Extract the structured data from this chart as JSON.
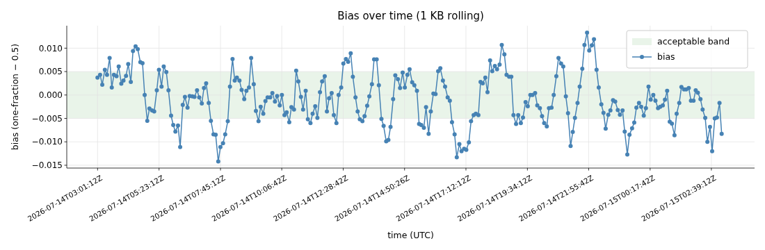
{
  "chart_data": {
    "type": "line",
    "title": "Bias over time (1 KB rolling)",
    "xlabel": "time (UTC)",
    "ylabel": "bias (one-fraction − 0.5)",
    "x": [
      "2026-07-14T03:01",
      "2026-07-14T03:07",
      "2026-07-14T03:12",
      "2026-07-14T03:18",
      "2026-07-14T03:23",
      "2026-07-14T03:29",
      "2026-07-14T03:34",
      "2026-07-14T03:39",
      "2026-07-14T03:45",
      "2026-07-14T03:50",
      "2026-07-14T03:56",
      "2026-07-14T04:01",
      "2026-07-14T04:07",
      "2026-07-14T04:12",
      "2026-07-14T04:18",
      "2026-07-14T04:23",
      "2026-07-14T04:29",
      "2026-07-14T04:34",
      "2026-07-14T04:40",
      "2026-07-14T04:45",
      "2026-07-14T04:50",
      "2026-07-14T04:56",
      "2026-07-14T05:01",
      "2026-07-14T05:07",
      "2026-07-14T05:12",
      "2026-07-14T05:18",
      "2026-07-14T05:23",
      "2026-07-14T05:29",
      "2026-07-14T05:34",
      "2026-07-14T05:40",
      "2026-07-14T05:45",
      "2026-07-14T05:51",
      "2026-07-14T05:56",
      "2026-07-14T06:01",
      "2026-07-14T06:07",
      "2026-07-14T06:12",
      "2026-07-14T06:18",
      "2026-07-14T06:23",
      "2026-07-14T06:29",
      "2026-07-14T06:34",
      "2026-07-14T06:40",
      "2026-07-14T06:45",
      "2026-07-14T06:51",
      "2026-07-14T06:56",
      "2026-07-14T07:02",
      "2026-07-14T07:07",
      "2026-07-14T07:12",
      "2026-07-14T07:18",
      "2026-07-14T07:23",
      "2026-07-14T07:29",
      "2026-07-14T07:34",
      "2026-07-14T07:40",
      "2026-07-14T07:45",
      "2026-07-14T07:51",
      "2026-07-14T07:56",
      "2026-07-14T08:02",
      "2026-07-14T08:07",
      "2026-07-14T08:13",
      "2026-07-14T08:18",
      "2026-07-14T08:23",
      "2026-07-14T08:29",
      "2026-07-14T08:34",
      "2026-07-14T08:40",
      "2026-07-14T08:45",
      "2026-07-14T08:51",
      "2026-07-14T08:56",
      "2026-07-14T09:02",
      "2026-07-14T09:07",
      "2026-07-14T09:13",
      "2026-07-14T09:18",
      "2026-07-14T09:24",
      "2026-07-14T09:29",
      "2026-07-14T09:34",
      "2026-07-14T09:40",
      "2026-07-14T09:45",
      "2026-07-14T09:51",
      "2026-07-14T09:56",
      "2026-07-14T10:02",
      "2026-07-14T10:07",
      "2026-07-14T10:13",
      "2026-07-14T10:18",
      "2026-07-14T10:24",
      "2026-07-14T10:29",
      "2026-07-14T10:35",
      "2026-07-14T10:40",
      "2026-07-14T10:45",
      "2026-07-14T10:51",
      "2026-07-14T10:56",
      "2026-07-14T11:02",
      "2026-07-14T11:07",
      "2026-07-14T11:13",
      "2026-07-14T11:18",
      "2026-07-14T11:24",
      "2026-07-14T11:29",
      "2026-07-14T11:35",
      "2026-07-14T11:40",
      "2026-07-14T11:46",
      "2026-07-14T11:51",
      "2026-07-14T11:56",
      "2026-07-14T12:02",
      "2026-07-14T12:07",
      "2026-07-14T12:13",
      "2026-07-14T12:18",
      "2026-07-14T12:24",
      "2026-07-14T12:29",
      "2026-07-14T12:35",
      "2026-07-14T12:40",
      "2026-07-14T12:46",
      "2026-07-14T12:51",
      "2026-07-14T12:57",
      "2026-07-14T13:02",
      "2026-07-14T13:07",
      "2026-07-14T13:13",
      "2026-07-14T13:18",
      "2026-07-14T13:24",
      "2026-07-14T13:29",
      "2026-07-14T13:35",
      "2026-07-14T13:40",
      "2026-07-14T13:46",
      "2026-07-14T13:51",
      "2026-07-14T13:57",
      "2026-07-14T14:02",
      "2026-07-14T14:08",
      "2026-07-14T14:13",
      "2026-07-14T14:18",
      "2026-07-14T14:24",
      "2026-07-14T14:29",
      "2026-07-14T14:35",
      "2026-07-14T14:40",
      "2026-07-14T14:46",
      "2026-07-14T14:51",
      "2026-07-14T14:57",
      "2026-07-14T15:02",
      "2026-07-14T15:08",
      "2026-07-14T15:13",
      "2026-07-14T15:19",
      "2026-07-14T15:24",
      "2026-07-14T15:29",
      "2026-07-14T15:35",
      "2026-07-14T15:40",
      "2026-07-14T15:46",
      "2026-07-14T15:51",
      "2026-07-14T15:57",
      "2026-07-14T16:02",
      "2026-07-14T16:08",
      "2026-07-14T16:13",
      "2026-07-14T16:19",
      "2026-07-14T16:24",
      "2026-07-14T16:30",
      "2026-07-14T16:35",
      "2026-07-14T16:40",
      "2026-07-14T16:46",
      "2026-07-14T16:51",
      "2026-07-14T16:57",
      "2026-07-14T17:02",
      "2026-07-14T17:08",
      "2026-07-14T17:13",
      "2026-07-14T17:19",
      "2026-07-14T17:24",
      "2026-07-14T17:30",
      "2026-07-14T17:35",
      "2026-07-14T17:41",
      "2026-07-14T17:46",
      "2026-07-14T17:51",
      "2026-07-14T17:57",
      "2026-07-14T18:02",
      "2026-07-14T18:08",
      "2026-07-14T18:13",
      "2026-07-14T18:19",
      "2026-07-14T18:24",
      "2026-07-14T18:30",
      "2026-07-14T18:35",
      "2026-07-14T18:41",
      "2026-07-14T18:46",
      "2026-07-14T18:52",
      "2026-07-14T18:57",
      "2026-07-14T19:02",
      "2026-07-14T19:08",
      "2026-07-14T19:13",
      "2026-07-14T19:19",
      "2026-07-14T19:24",
      "2026-07-14T19:30",
      "2026-07-14T19:35",
      "2026-07-14T19:41",
      "2026-07-14T19:46",
      "2026-07-14T19:52",
      "2026-07-14T19:57",
      "2026-07-14T20:03",
      "2026-07-14T20:08",
      "2026-07-14T20:13",
      "2026-07-14T20:19",
      "2026-07-14T20:24",
      "2026-07-14T20:30",
      "2026-07-14T20:35",
      "2026-07-14T20:41",
      "2026-07-14T20:46",
      "2026-07-14T20:52",
      "2026-07-14T20:57",
      "2026-07-14T21:03",
      "2026-07-14T21:08",
      "2026-07-14T21:14",
      "2026-07-14T21:19",
      "2026-07-14T21:24",
      "2026-07-14T21:30",
      "2026-07-14T21:35",
      "2026-07-14T21:41",
      "2026-07-14T21:46",
      "2026-07-14T21:52",
      "2026-07-14T21:57",
      "2026-07-14T22:03",
      "2026-07-14T22:08",
      "2026-07-14T22:14",
      "2026-07-14T22:19",
      "2026-07-14T22:25",
      "2026-07-14T22:30",
      "2026-07-14T22:35",
      "2026-07-14T22:41",
      "2026-07-14T22:46",
      "2026-07-14T22:52",
      "2026-07-14T22:57",
      "2026-07-14T23:03",
      "2026-07-14T23:08",
      "2026-07-14T23:14",
      "2026-07-14T23:19",
      "2026-07-14T23:25",
      "2026-07-14T23:30",
      "2026-07-14T23:36",
      "2026-07-14T23:41",
      "2026-07-14T23:46",
      "2026-07-14T23:52",
      "2026-07-14T23:57",
      "2026-07-15T00:03",
      "2026-07-15T00:08",
      "2026-07-15T00:14",
      "2026-07-15T00:19",
      "2026-07-15T00:25",
      "2026-07-15T00:30",
      "2026-07-15T00:36",
      "2026-07-15T00:41",
      "2026-07-15T00:47",
      "2026-07-15T00:52",
      "2026-07-15T00:57",
      "2026-07-15T01:03",
      "2026-07-15T01:08",
      "2026-07-15T01:14",
      "2026-07-15T01:19",
      "2026-07-15T01:25",
      "2026-07-15T01:30",
      "2026-07-15T01:36",
      "2026-07-15T01:41",
      "2026-07-15T01:47",
      "2026-07-15T01:52",
      "2026-07-15T01:58",
      "2026-07-15T02:03",
      "2026-07-15T02:08",
      "2026-07-15T02:14",
      "2026-07-15T02:19",
      "2026-07-15T02:25",
      "2026-07-15T02:30",
      "2026-07-15T02:36",
      "2026-07-15T02:41",
      "2026-07-15T02:47",
      "2026-07-15T02:52",
      "2026-07-15T02:58",
      "2026-07-15T03:03"
    ],
    "series": [
      {
        "name": "bias",
        "color": "#4682b4",
        "values": [
          0.0037,
          0.0043,
          0.0022,
          0.0054,
          0.0043,
          0.0079,
          0.0016,
          0.0043,
          0.004,
          0.0061,
          0.0024,
          0.0031,
          0.0041,
          0.0066,
          0.0028,
          0.0094,
          0.0104,
          0.0098,
          0.007,
          0.0068,
          0.0,
          -0.0055,
          -0.0029,
          -0.0033,
          -0.0035,
          0.001,
          0.0054,
          0.0018,
          0.0061,
          0.0049,
          0.001,
          -0.0044,
          -0.0064,
          -0.0078,
          -0.0065,
          -0.0111,
          -0.0021,
          -0.0004,
          -0.0027,
          -0.0002,
          -0.0003,
          -0.0004,
          0.001,
          -0.0005,
          -0.0018,
          0.0015,
          0.0025,
          -0.0017,
          -0.0055,
          -0.0084,
          -0.0085,
          -0.0142,
          -0.0111,
          -0.0103,
          -0.0084,
          -0.0056,
          0.0018,
          0.0077,
          0.0031,
          0.0037,
          0.0031,
          0.0011,
          -0.0009,
          0.0009,
          0.0016,
          0.0079,
          0.0023,
          -0.0034,
          -0.0056,
          -0.0025,
          -0.004,
          -0.0013,
          -0.0005,
          -0.0005,
          0.0004,
          -0.0014,
          -0.0002,
          -0.0022,
          0.0,
          -0.0043,
          -0.0037,
          -0.0058,
          -0.0026,
          -0.0031,
          0.0052,
          0.0029,
          -0.0004,
          -0.0031,
          0.0009,
          -0.0052,
          -0.006,
          -0.004,
          -0.0024,
          -0.0049,
          0.0006,
          0.0029,
          0.004,
          -0.0035,
          -0.0007,
          0.0004,
          -0.0043,
          -0.006,
          0.0,
          0.0016,
          0.0067,
          0.0077,
          0.0071,
          0.0089,
          0.0039,
          -0.0005,
          -0.0035,
          -0.0052,
          -0.0056,
          -0.0045,
          -0.0023,
          -0.0003,
          0.0023,
          0.0076,
          0.0076,
          0.0021,
          -0.0051,
          -0.0066,
          -0.0099,
          -0.0096,
          -0.0068,
          -0.0009,
          0.0042,
          0.0034,
          0.0015,
          0.0048,
          0.0016,
          0.0043,
          0.0055,
          0.0027,
          0.0021,
          0.0009,
          -0.0062,
          -0.0064,
          -0.007,
          -0.0026,
          -0.0083,
          -0.0035,
          0.0003,
          0.0002,
          0.0051,
          0.0057,
          0.0031,
          0.0018,
          -0.0005,
          -0.0012,
          -0.0058,
          -0.0084,
          -0.0133,
          -0.0105,
          -0.012,
          -0.0115,
          -0.0117,
          -0.0101,
          -0.0056,
          -0.0043,
          -0.004,
          -0.0043,
          0.0028,
          0.0025,
          0.0037,
          0.0006,
          0.0074,
          0.0051,
          0.0062,
          0.0055,
          0.0065,
          0.0107,
          0.0087,
          0.0043,
          0.0039,
          0.0039,
          -0.0043,
          -0.0062,
          -0.0043,
          -0.006,
          -0.0048,
          -0.0015,
          -0.0024,
          0.0,
          0.0,
          0.0004,
          -0.0022,
          -0.0028,
          -0.0045,
          -0.006,
          -0.0067,
          -0.0028,
          -0.0027,
          0.0,
          0.004,
          0.0079,
          0.0067,
          0.0061,
          -0.0003,
          -0.0039,
          -0.0109,
          -0.0079,
          -0.0049,
          -0.0017,
          0.0018,
          0.0056,
          0.0107,
          0.0133,
          0.0095,
          0.0106,
          0.0119,
          0.0054,
          0.0016,
          -0.002,
          -0.0038,
          -0.0072,
          -0.0042,
          -0.0033,
          -0.0011,
          -0.0014,
          -0.0032,
          -0.0042,
          -0.0033,
          -0.0078,
          -0.0127,
          -0.0085,
          -0.0071,
          -0.0059,
          -0.0027,
          -0.0017,
          -0.0025,
          -0.0044,
          -0.0028,
          0.0018,
          -0.001,
          0.0,
          -0.0012,
          -0.0028,
          -0.0025,
          -0.0022,
          -0.001,
          0.0009,
          -0.0057,
          -0.0061,
          -0.0086,
          -0.004,
          -0.0017,
          0.0017,
          0.0012,
          0.0012,
          0.0015,
          -0.0012,
          -0.0012,
          0.001,
          0.0005,
          -0.0009,
          -0.0031,
          -0.0049,
          -0.01,
          -0.0068,
          -0.012,
          -0.005,
          -0.0048,
          -0.0017,
          -0.0083
        ]
      }
    ],
    "xlim": [
      "2026-07-14T01:50",
      "2026-07-15T04:19"
    ],
    "xticks": [
      {
        "value": "2026-07-14T03:01:12",
        "label": "2026-07-14T03:01:12Z"
      },
      {
        "value": "2026-07-14T05:23:12",
        "label": "2026-07-14T05:23:12Z"
      },
      {
        "value": "2026-07-14T07:45:12",
        "label": "2026-07-14T07:45:12Z"
      },
      {
        "value": "2026-07-14T10:06:42",
        "label": "2026-07-14T10:06:42Z"
      },
      {
        "value": "2026-07-14T12:28:42",
        "label": "2026-07-14T12:28:42Z"
      },
      {
        "value": "2026-07-14T14:50:26",
        "label": "2026-07-14T14:50:26Z"
      },
      {
        "value": "2026-07-14T17:12:12",
        "label": "2026-07-14T17:12:12Z"
      },
      {
        "value": "2026-07-14T19:34:12",
        "label": "2026-07-14T19:34:12Z"
      },
      {
        "value": "2026-07-14T21:55:42",
        "label": "2026-07-14T21:55:42Z"
      },
      {
        "value": "2026-07-15T00:17:42",
        "label": "2026-07-15T00:17:42Z"
      },
      {
        "value": "2026-07-15T02:39:12",
        "label": "2026-07-15T02:39:12Z"
      }
    ],
    "ylim": [
      -0.0156,
      0.0148
    ],
    "yticks": [
      {
        "value": -0.015,
        "label": "−0.015"
      },
      {
        "value": -0.01,
        "label": "−0.010"
      },
      {
        "value": -0.005,
        "label": "−0.005"
      },
      {
        "value": 0,
        "label": "0.000"
      },
      {
        "value": 0.005,
        "label": "0.005"
      },
      {
        "value": 0.01,
        "label": "0.010"
      }
    ],
    "bands": [
      {
        "axis": "y",
        "from": -0.005,
        "to": 0.005,
        "label": "acceptable band",
        "color": "#e9f4e9"
      }
    ],
    "grid": true,
    "legend": "top right",
    "marker": "circle",
    "line_style": "solid"
  }
}
